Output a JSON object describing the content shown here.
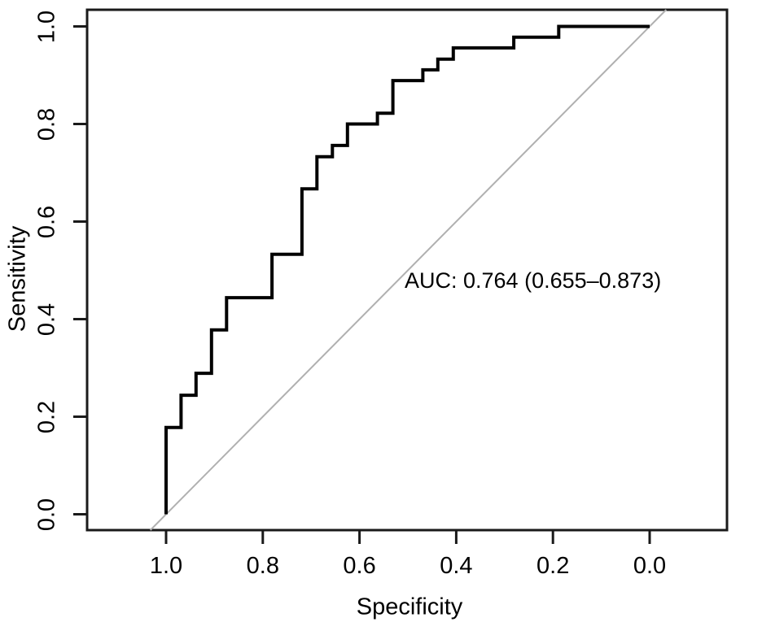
{
  "figure": {
    "background": "#ffffff",
    "frame_color": "#1a1a1a",
    "curve_color": "#000000",
    "text_color": "#000000"
  },
  "chart_data": {
    "type": "line",
    "subtype": "roc_step_curve",
    "title": "",
    "xlabel": "Specificity",
    "ylabel": "Sensitivity",
    "x_ticks": [
      1.0,
      0.8,
      0.6,
      0.4,
      0.2,
      0.0
    ],
    "x_tick_labels": [
      "1.0",
      "0.8",
      "0.6",
      "0.4",
      "0.2",
      "0.0"
    ],
    "y_ticks": [
      0.0,
      0.2,
      0.4,
      0.6,
      0.8,
      1.0
    ],
    "y_tick_labels": [
      "0.0",
      "0.2",
      "0.4",
      "0.6",
      "0.8",
      "1.0"
    ],
    "xlim": [
      1.0,
      0.0
    ],
    "ylim": [
      0.0,
      1.0
    ],
    "x_axis_reversed": true,
    "grid": false,
    "legend": "none",
    "annotation": {
      "text": "AUC: 0.764 (0.655–0.873)",
      "auc": 0.764,
      "ci_lower": 0.655,
      "ci_upper": 0.873
    },
    "reference_line": {
      "from": [
        1.0,
        0.0
      ],
      "to": [
        0.0,
        1.0
      ],
      "style": "solid",
      "color": "#b0b0b0",
      "extends_to_frame": true
    },
    "series": [
      {
        "name": "ROC curve",
        "points_spec_sens": [
          [
            1.0,
            0.0
          ],
          [
            1.0,
            0.178
          ],
          [
            0.969,
            0.178
          ],
          [
            0.969,
            0.244
          ],
          [
            0.938,
            0.244
          ],
          [
            0.938,
            0.289
          ],
          [
            0.906,
            0.289
          ],
          [
            0.906,
            0.378
          ],
          [
            0.875,
            0.378
          ],
          [
            0.875,
            0.444
          ],
          [
            0.781,
            0.444
          ],
          [
            0.781,
            0.533
          ],
          [
            0.719,
            0.533
          ],
          [
            0.719,
            0.667
          ],
          [
            0.688,
            0.667
          ],
          [
            0.688,
            0.733
          ],
          [
            0.656,
            0.733
          ],
          [
            0.656,
            0.756
          ],
          [
            0.625,
            0.756
          ],
          [
            0.625,
            0.8
          ],
          [
            0.563,
            0.8
          ],
          [
            0.563,
            0.822
          ],
          [
            0.531,
            0.822
          ],
          [
            0.531,
            0.889
          ],
          [
            0.469,
            0.889
          ],
          [
            0.469,
            0.911
          ],
          [
            0.438,
            0.911
          ],
          [
            0.438,
            0.933
          ],
          [
            0.406,
            0.933
          ],
          [
            0.406,
            0.956
          ],
          [
            0.281,
            0.956
          ],
          [
            0.281,
            0.978
          ],
          [
            0.188,
            0.978
          ],
          [
            0.188,
            1.0
          ],
          [
            0.0,
            1.0
          ]
        ]
      }
    ]
  }
}
